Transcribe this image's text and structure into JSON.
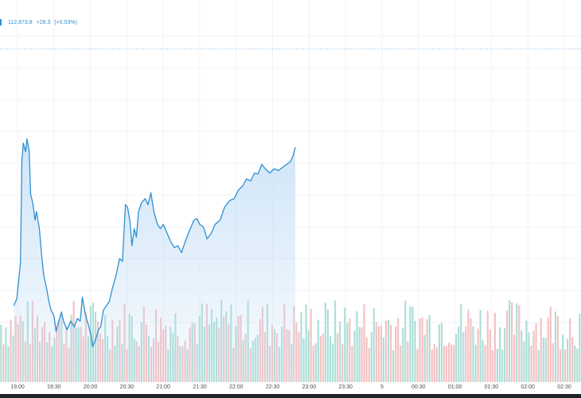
{
  "legend": {
    "price": "112,873.8",
    "change": "+28.3",
    "change_pct": "(+0.03%)"
  },
  "colors": {
    "line": "#2e8fd3",
    "area_top": "#bfdcf5",
    "volume_up": "#9ed8d0",
    "volume_down": "#f2b6b9",
    "grid": "#f0f3f7",
    "axis_text": "#4a4f5a",
    "reference_line": "#8fc3ea"
  },
  "chart_data": {
    "type": "area",
    "x_ticks": [
      "19:00",
      "19:30",
      "20:00",
      "20:30",
      "21:00",
      "21:30",
      "22:00",
      "22:30",
      "23:00",
      "23:30",
      "5",
      "00:30",
      "01:00",
      "01:30",
      "02:00",
      "02:30"
    ],
    "y_axis_labels_shown": false,
    "y_range": [
      112600,
      113000
    ],
    "reference_value": 112980,
    "series": [
      {
        "values": [
          [
            -0.1,
            112680
          ],
          [
            -0.02,
            112688
          ],
          [
            0.08,
            112730
          ],
          [
            0.12,
            112850
          ],
          [
            0.16,
            112870
          ],
          [
            0.22,
            112860
          ],
          [
            0.26,
            112875
          ],
          [
            0.32,
            112860
          ],
          [
            0.36,
            112810
          ],
          [
            0.42,
            112800
          ],
          [
            0.48,
            112780
          ],
          [
            0.52,
            112790
          ],
          [
            0.6,
            112770
          ],
          [
            0.66,
            112740
          ],
          [
            0.72,
            112715
          ],
          [
            0.8,
            112700
          ],
          [
            0.86,
            112685
          ],
          [
            0.92,
            112675
          ],
          [
            1.0,
            112668
          ],
          [
            1.06,
            112650
          ],
          [
            1.12,
            112660
          ],
          [
            1.2,
            112672
          ],
          [
            1.28,
            112660
          ],
          [
            1.36,
            112652
          ],
          [
            1.46,
            112662
          ],
          [
            1.56,
            112655
          ],
          [
            1.64,
            112665
          ],
          [
            1.72,
            112662
          ],
          [
            1.78,
            112690
          ],
          [
            1.86,
            112670
          ],
          [
            1.94,
            112658
          ],
          [
            2.02,
            112645
          ],
          [
            2.06,
            112632
          ],
          [
            2.14,
            112640
          ],
          [
            2.22,
            112652
          ],
          [
            2.28,
            112655
          ],
          [
            2.36,
            112675
          ],
          [
            2.44,
            112680
          ],
          [
            2.52,
            112685
          ],
          [
            2.6,
            112700
          ],
          [
            2.7,
            112715
          ],
          [
            2.8,
            112735
          ],
          [
            2.88,
            112732
          ],
          [
            2.96,
            112798
          ],
          [
            3.02,
            112795
          ],
          [
            3.08,
            112780
          ],
          [
            3.14,
            112750
          ],
          [
            3.2,
            112770
          ],
          [
            3.26,
            112760
          ],
          [
            3.32,
            112790
          ],
          [
            3.4,
            112800
          ],
          [
            3.5,
            112805
          ],
          [
            3.58,
            112798
          ],
          [
            3.66,
            112812
          ],
          [
            3.74,
            112790
          ],
          [
            3.84,
            112775
          ],
          [
            3.92,
            112770
          ],
          [
            4.0,
            112775
          ],
          [
            4.1,
            112765
          ],
          [
            4.2,
            112755
          ],
          [
            4.3,
            112748
          ],
          [
            4.4,
            112750
          ],
          [
            4.5,
            112742
          ],
          [
            4.6,
            112755
          ],
          [
            4.72,
            112768
          ],
          [
            4.84,
            112780
          ],
          [
            4.92,
            112782
          ],
          [
            5.0,
            112775
          ],
          [
            5.1,
            112772
          ],
          [
            5.2,
            112758
          ],
          [
            5.32,
            112765
          ],
          [
            5.42,
            112775
          ],
          [
            5.56,
            112780
          ],
          [
            5.68,
            112795
          ],
          [
            5.82,
            112803
          ],
          [
            5.94,
            112805
          ],
          [
            6.06,
            112815
          ],
          [
            6.18,
            112820
          ],
          [
            6.28,
            112828
          ],
          [
            6.4,
            112826
          ],
          [
            6.5,
            112835
          ],
          [
            6.6,
            112834
          ],
          [
            6.7,
            112845
          ],
          [
            6.8,
            112840
          ],
          [
            6.92,
            112835
          ],
          [
            7.04,
            112840
          ],
          [
            7.16,
            112838
          ],
          [
            7.28,
            112842
          ],
          [
            7.38,
            112845
          ],
          [
            7.48,
            112848
          ],
          [
            7.56,
            112855
          ],
          [
            7.62,
            112865
          ]
        ]
      }
    ],
    "volume": {
      "bar_count": 240,
      "max_height_relative": 1.0,
      "note_alternating": "mixed up/down bars"
    }
  }
}
